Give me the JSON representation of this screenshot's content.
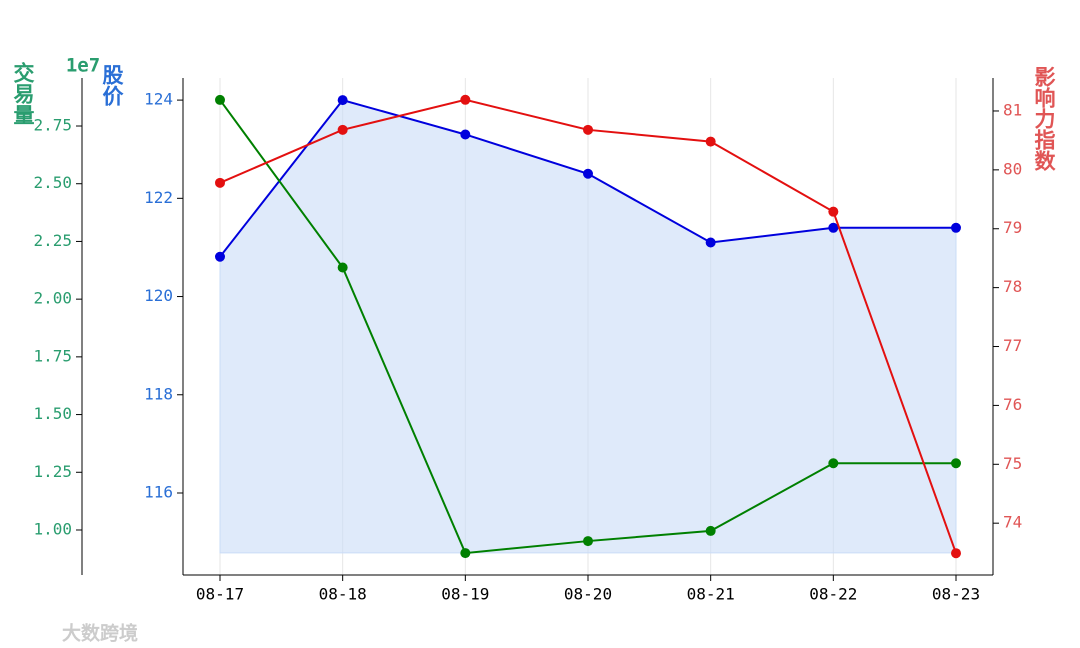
{
  "chart_data": {
    "type": "line",
    "categories": [
      "08-17",
      "08-18",
      "08-19",
      "08-20",
      "08-21",
      "08-22",
      "08-23"
    ],
    "grid": "x",
    "ylabel": "股价",
    "ylim": [
      114.33,
      124.45
    ],
    "yticks": [
      116,
      118,
      120,
      122,
      124
    ],
    "y2label": "交易量",
    "y2offset": "1e7",
    "y2lim": [
      0.805,
      2.958
    ],
    "y2ticks": [
      {
        "value": 1,
        "label": "1.00"
      },
      {
        "value": 1.25,
        "label": "1.25"
      },
      {
        "value": 1.5,
        "label": "1.50"
      },
      {
        "value": 1.75,
        "label": "1.75"
      },
      {
        "value": 2,
        "label": "2.00"
      },
      {
        "value": 2.25,
        "label": "2.25"
      },
      {
        "value": 2.5,
        "label": "2.50"
      },
      {
        "value": 2.75,
        "label": "2.75"
      }
    ],
    "y3label": "影响力指数",
    "y3lim": [
      73.12,
      81.56
    ],
    "y3ticks": [
      74,
      75,
      76,
      77,
      78,
      79,
      80,
      81
    ],
    "series": [
      {
        "name": "股价",
        "color": "#0000dd",
        "axis": "y",
        "area_base": 114.78,
        "area_color": "#c9dcf7",
        "values": [
          120.81,
          124,
          123.3,
          122.5,
          121.1,
          121.4,
          121.4
        ]
      },
      {
        "name": "交易量",
        "color": "#008000",
        "axis": "y2",
        "values": [
          2.863,
          2.137,
          0.9,
          0.952,
          0.996,
          1.289,
          1.289
        ]
      },
      {
        "name": "影响力指数",
        "color": "#e31010",
        "axis": "y3",
        "values": [
          79.78,
          80.68,
          81.19,
          80.68,
          80.48,
          79.29,
          73.49
        ]
      }
    ],
    "axis_colors": {
      "y": "#2a6fd6",
      "y2": "#2a9d6f",
      "y3": "#e05555"
    },
    "watermark": "大数跨境"
  }
}
